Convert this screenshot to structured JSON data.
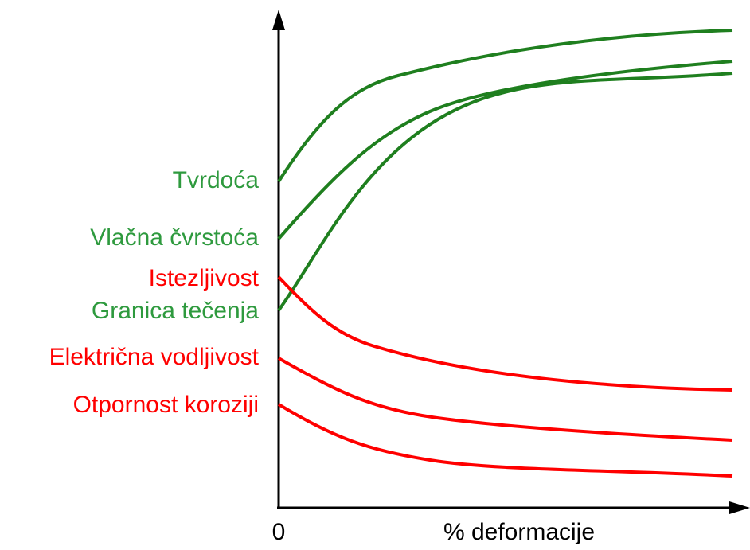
{
  "axis": {
    "origin": "0",
    "x_label": "% deformacije"
  },
  "labels": [
    "Tvrdoća",
    "Vlačna čvrstoća",
    "Istezljivost",
    "Granica tečenja",
    "Električna vodljivost",
    "Otpornost koroziji"
  ]
}
